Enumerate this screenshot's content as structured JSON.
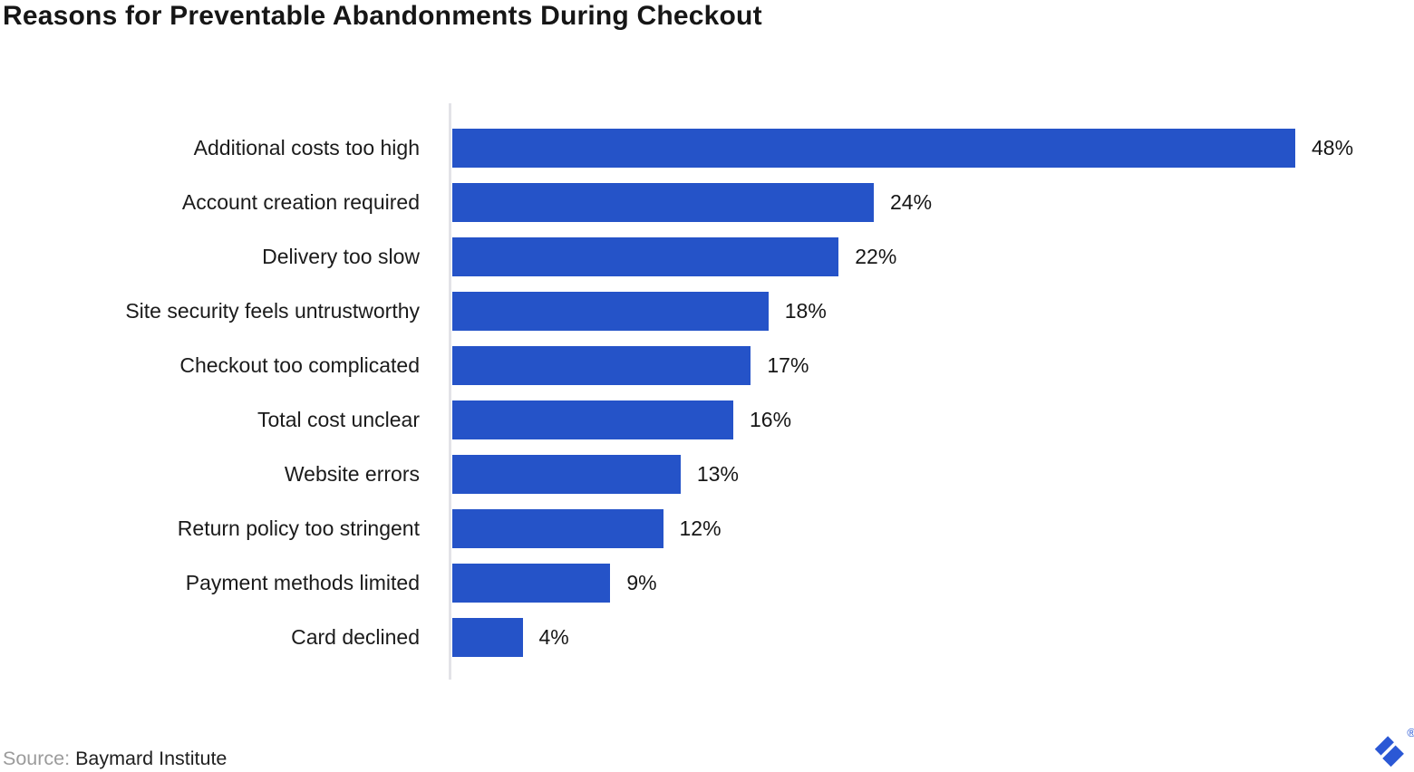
{
  "title": "Reasons for Preventable Abandonments During Checkout",
  "chart_data": {
    "type": "bar",
    "orientation": "horizontal",
    "title": "Reasons for Preventable Abandonments During Checkout",
    "categories": [
      "Additional costs too high",
      "Account creation required",
      "Delivery too slow",
      "Site security feels untrustworthy",
      "Checkout too complicated",
      "Total cost unclear",
      "Website errors",
      "Return policy too stringent",
      "Payment methods limited",
      "Card declined"
    ],
    "values": [
      48,
      24,
      22,
      18,
      17,
      16,
      13,
      12,
      9,
      4
    ],
    "value_suffix": "%",
    "xlabel": "",
    "ylabel": "",
    "xlim": [
      0,
      48
    ],
    "grid": false,
    "legend": false,
    "bar_color": "#2553c8",
    "axis_color": "#e3e3e8"
  },
  "source": {
    "prefix": "Source:",
    "name": "Baymard Institute"
  },
  "logo": {
    "name": "toptal-logo",
    "color": "#2b58d5",
    "registered_mark": "®"
  }
}
